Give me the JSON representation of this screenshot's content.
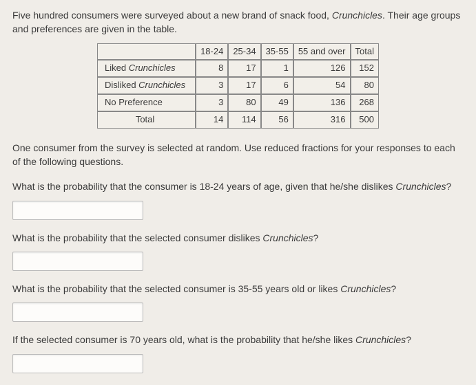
{
  "intro_part1": "Five hundred consumers were surveyed about a new brand of snack food, ",
  "intro_brand": "Crunchicles",
  "intro_part2": ". Their age groups and preferences are given in the table.",
  "table": {
    "columns": [
      "18-24",
      "25-34",
      "35-55",
      "55 and over",
      "Total"
    ],
    "rows": [
      {
        "label_pre": "Liked ",
        "label_em": "Crunchicles",
        "cells": [
          "8",
          "17",
          "1",
          "126",
          "152"
        ]
      },
      {
        "label_pre": "Disliked ",
        "label_em": "Crunchicles",
        "cells": [
          "3",
          "17",
          "6",
          "54",
          "80"
        ]
      },
      {
        "label_pre": "No Preference",
        "label_em": "",
        "cells": [
          "3",
          "80",
          "49",
          "136",
          "268"
        ]
      },
      {
        "label_pre": "Total",
        "label_em": "",
        "cells": [
          "14",
          "114",
          "56",
          "316",
          "500"
        ]
      }
    ]
  },
  "q_intro1": "One consumer from the survey is selected at random. Use reduced fractions for your responses to each of the following questions.",
  "q1_a": "What is the probability that the consumer is 18-24 years of age, given that he/she dislikes ",
  "q1_em": "Crunchicles",
  "q1_b": "?",
  "q2_a": "What is the probability that the selected consumer dislikes ",
  "q2_em": "Crunchicles",
  "q2_b": "?",
  "q3_a": "What is the probability that the selected consumer is 35-55 years old or likes ",
  "q3_em": "Crunchicles",
  "q3_b": "?",
  "q4_a": "If the selected consumer is 70 years old, what is the probability that he/she likes ",
  "q4_em": "Crunchicles",
  "q4_b": "?"
}
